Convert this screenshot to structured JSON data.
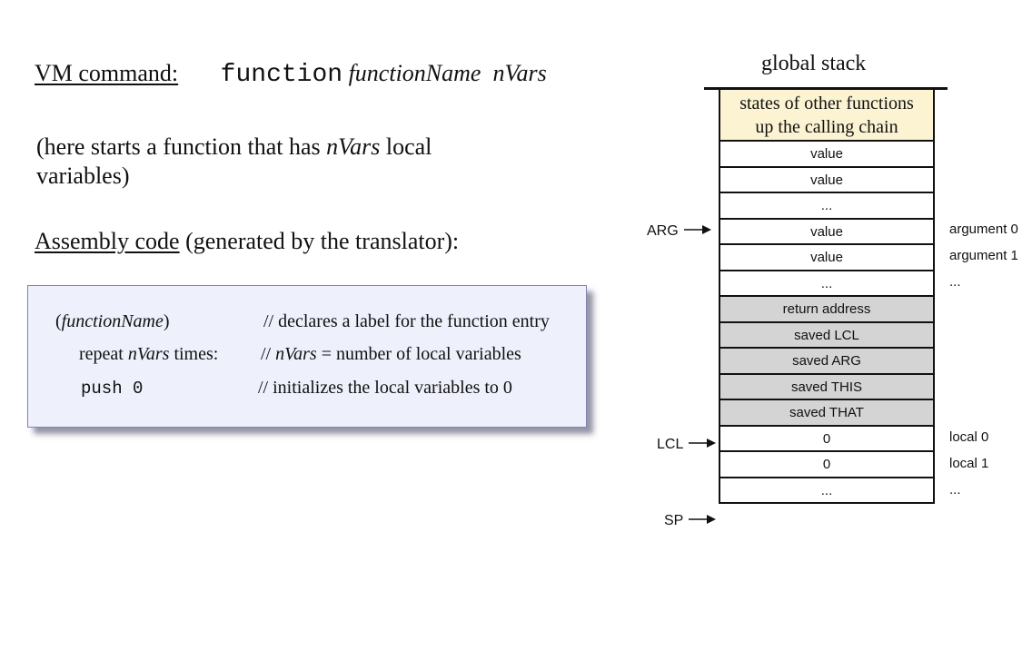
{
  "vm": {
    "heading": "VM command:",
    "keyword": "function",
    "args": "functionName  nVars"
  },
  "description": {
    "before": "(here starts a function that has ",
    "italic": "nVars",
    "after": " local variables)"
  },
  "assembly": {
    "heading": "Assembly code",
    "note": " (generated by the translator):"
  },
  "code": {
    "row1_open": "(",
    "row1_name": "functionName",
    "row1_close": ")",
    "row1_comment": "// declares a label for the function entry",
    "row2_pre": "repeat ",
    "row2_var": "nVars",
    "row2_post": " times:",
    "row2_comment_pre": "// ",
    "row2_comment_var": "nVars",
    "row2_comment_post": " = number of local variables",
    "row3_cmd": "push 0",
    "row3_comment": "// initializes  the local variables to 0"
  },
  "stack": {
    "title": "global stack",
    "top_line1": "states of other functions",
    "top_line2": "up the calling chain",
    "cells": [
      "value",
      "value",
      "...",
      "value",
      "value",
      "...",
      "return address",
      "saved LCL",
      "saved ARG",
      "saved THIS",
      "saved THAT",
      "0",
      "0",
      "..."
    ],
    "pointers": {
      "arg": "ARG",
      "lcl": "LCL",
      "sp": "SP"
    },
    "side_labels": {
      "arg0": "argument 0",
      "arg1": "argument 1",
      "dots1": "...",
      "local0": "local 0",
      "local1": "local 1",
      "dots2": "..."
    }
  }
}
